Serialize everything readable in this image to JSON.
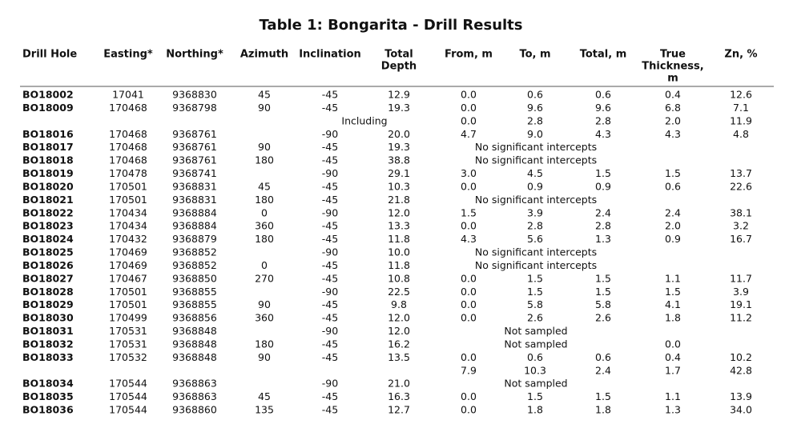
{
  "title": "Table 1: Bongarita - Drill Results",
  "headers": [
    [
      "Drill Hole"
    ],
    [
      "Easting*"
    ],
    [
      "Northing*"
    ],
    [
      "Azimuth"
    ],
    [
      "Inclination"
    ],
    [
      "Total",
      "Depth"
    ],
    [
      "From, m"
    ],
    [
      "To, m"
    ],
    [
      "Total, m"
    ],
    [
      "True",
      "Thickness,",
      "m"
    ],
    [
      "Zn, %"
    ]
  ],
  "rows": [
    {
      "hole": "BO18002",
      "easting": "17041",
      "northing": "9368830",
      "azimuth": "45",
      "inclination": "-45",
      "depth": "12.9",
      "from": "0.0",
      "to": "0.6",
      "total": "0.6",
      "true": "0.4",
      "zn": "12.6"
    },
    {
      "hole": "BO18009",
      "easting": "170468",
      "northing": "9368798",
      "azimuth": "90",
      "inclination": "-45",
      "depth": "19.3",
      "from": "0.0",
      "to": "9.6",
      "total": "9.6",
      "true": "6.8",
      "zn": "7.1"
    },
    {
      "note": "Including",
      "from": "0.0",
      "to": "2.8",
      "total": "2.8",
      "true": "2.0",
      "zn": "11.9"
    },
    {
      "hole": "BO18016",
      "easting": "170468",
      "northing": "9368761",
      "inclination": "-90",
      "depth": "20.0",
      "from": "4.7",
      "to": "9.0",
      "total": "4.3",
      "true": "4.3",
      "zn": "4.8"
    },
    {
      "hole": "BO18017",
      "easting": "170468",
      "northing": "9368761",
      "azimuth": "90",
      "inclination": "-45",
      "depth": "19.3",
      "note": "No significant intercepts"
    },
    {
      "hole": "BO18018",
      "easting": "170468",
      "northing": "9368761",
      "azimuth": "180",
      "inclination": "-45",
      "depth": "38.8",
      "note": "No significant intercepts"
    },
    {
      "hole": "BO18019",
      "easting": "170478",
      "northing": "9368741",
      "inclination": "-90",
      "depth": "29.1",
      "from": "3.0",
      "to": "4.5",
      "total": "1.5",
      "true": "1.5",
      "zn": "13.7"
    },
    {
      "hole": "BO18020",
      "easting": "170501",
      "northing": "9368831",
      "azimuth": "45",
      "inclination": "-45",
      "depth": "10.3",
      "from": "0.0",
      "to": "0.9",
      "total": "0.9",
      "true": "0.6",
      "zn": "22.6"
    },
    {
      "hole": "BO18021",
      "easting": "170501",
      "northing": "9368831",
      "azimuth": "180",
      "inclination": "-45",
      "depth": "21.8",
      "note": "No significant intercepts"
    },
    {
      "hole": "BO18022",
      "easting": "170434",
      "northing": "9368884",
      "azimuth": "0",
      "inclination": "-90",
      "depth": "12.0",
      "from": "1.5",
      "to": "3.9",
      "total": "2.4",
      "true": "2.4",
      "zn": "38.1"
    },
    {
      "hole": "BO18023",
      "easting": "170434",
      "northing": "9368884",
      "azimuth": "360",
      "inclination": "-45",
      "depth": "13.3",
      "from": "0.0",
      "to": "2.8",
      "total": "2.8",
      "true": "2.0",
      "zn": "3.2"
    },
    {
      "hole": "BO18024",
      "easting": "170432",
      "northing": "9368879",
      "azimuth": "180",
      "inclination": "-45",
      "depth": "11.8",
      "from": "4.3",
      "to": "5.6",
      "total": "1.3",
      "true": "0.9",
      "zn": "16.7"
    },
    {
      "hole": "BO18025",
      "easting": "170469",
      "northing": "9368852",
      "inclination": "-90",
      "depth": "10.0",
      "note": "No significant intercepts"
    },
    {
      "hole": "BO18026",
      "easting": "170469",
      "northing": "9368852",
      "azimuth": "0",
      "inclination": "-45",
      "depth": "11.8",
      "note": "No significant intercepts"
    },
    {
      "hole": "BO18027",
      "easting": "170467",
      "northing": "9368850",
      "azimuth": "270",
      "inclination": "-45",
      "depth": "10.8",
      "from": "0.0",
      "to": "1.5",
      "total": "1.5",
      "true": "1.1",
      "zn": "11.7"
    },
    {
      "hole": "BO18028",
      "easting": "170501",
      "northing": "9368855",
      "inclination": "-90",
      "depth": "22.5",
      "from": "0.0",
      "to": "1.5",
      "total": "1.5",
      "true": "1.5",
      "zn": "3.9"
    },
    {
      "hole": "BO18029",
      "easting": "170501",
      "northing": "9368855",
      "azimuth": "90",
      "inclination": "-45",
      "depth": "9.8",
      "from": "0.0",
      "to": "5.8",
      "total": "5.8",
      "true": "4.1",
      "zn": "19.1"
    },
    {
      "hole": "BO18030",
      "easting": "170499",
      "northing": "9368856",
      "azimuth": "360",
      "inclination": "-45",
      "depth": "12.0",
      "from": "0.0",
      "to": "2.6",
      "total": "2.6",
      "true": "1.8",
      "zn": "11.2"
    },
    {
      "hole": "BO18031",
      "easting": "170531",
      "northing": "9368848",
      "inclination": "-90",
      "depth": "12.0",
      "note": "Not sampled"
    },
    {
      "hole": "BO18032",
      "easting": "170531",
      "northing": "9368848",
      "azimuth": "180",
      "inclination": "-45",
      "depth": "16.2",
      "note": "Not sampled",
      "true": "0.0"
    },
    {
      "hole": "BO18033",
      "easting": "170532",
      "northing": "9368848",
      "azimuth": "90",
      "inclination": "-45",
      "depth": "13.5",
      "from": "0.0",
      "to": "0.6",
      "total": "0.6",
      "true": "0.4",
      "zn": "10.2"
    },
    {
      "from": "7.9",
      "to": "10.3",
      "total": "2.4",
      "true": "1.7",
      "zn": "42.8"
    },
    {
      "hole": "BO18034",
      "easting": "170544",
      "northing": "9368863",
      "inclination": "-90",
      "depth": "21.0",
      "note": "Not sampled"
    },
    {
      "hole": "BO18035",
      "easting": "170544",
      "northing": "9368863",
      "azimuth": "45",
      "inclination": "-45",
      "depth": "16.3",
      "from": "0.0",
      "to": "1.5",
      "total": "1.5",
      "true": "1.1",
      "zn": "13.9"
    },
    {
      "hole": "BO18036",
      "easting": "170544",
      "northing": "9368860",
      "azimuth": "135",
      "inclination": "-45",
      "depth": "12.7",
      "from": "0.0",
      "to": "1.8",
      "total": "1.8",
      "true": "1.3",
      "zn": "34.0"
    }
  ]
}
